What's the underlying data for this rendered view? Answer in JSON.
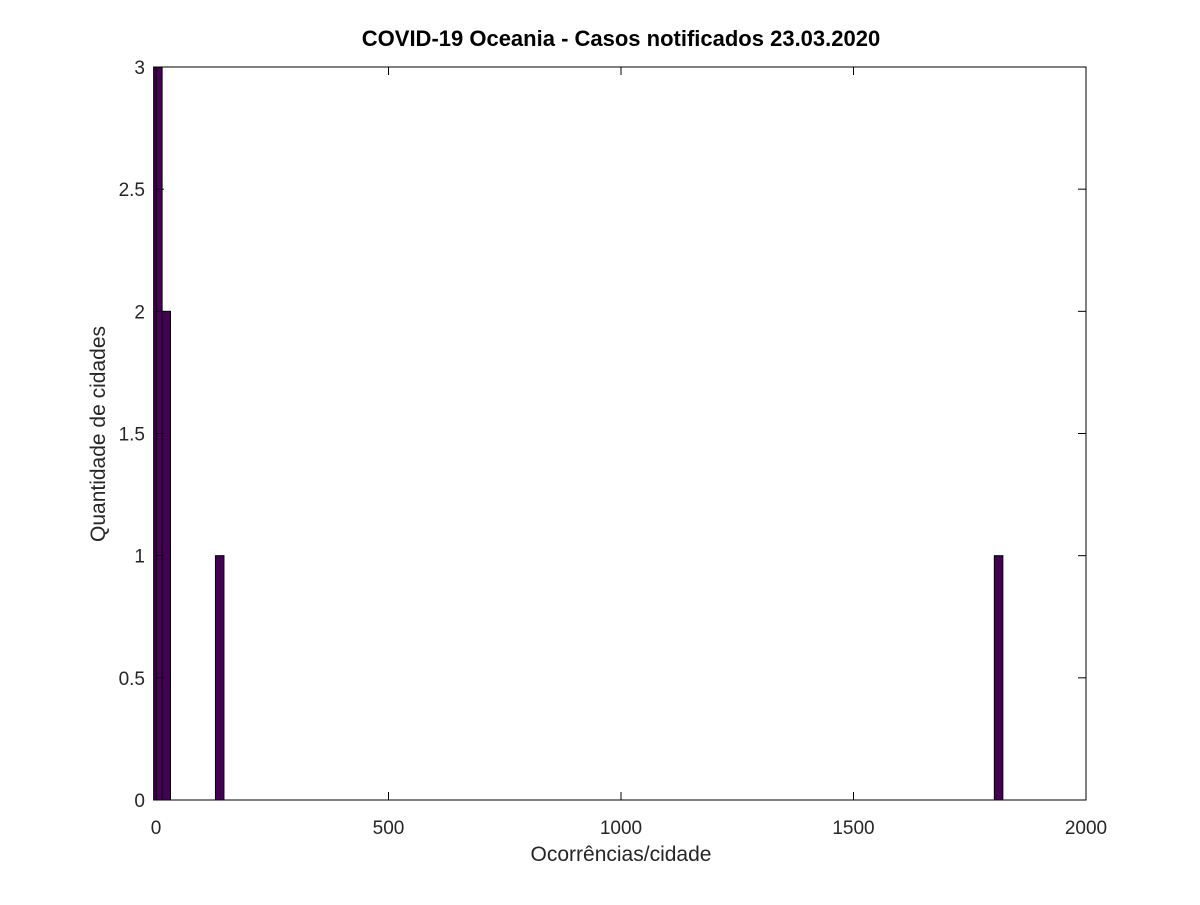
{
  "chart_data": {
    "type": "bar",
    "title": "COVID-19 Oceania - Casos notificados 23.03.2020",
    "xlabel": "Ocorrências/cidade",
    "ylabel": "Quantidade de cidades",
    "xlim": [
      0,
      2000
    ],
    "ylim": [
      0,
      3
    ],
    "x_ticks": [
      0,
      500,
      1000,
      1500,
      2000
    ],
    "x_tick_labels": [
      "0",
      "500",
      "1000",
      "1500",
      "2000"
    ],
    "y_ticks": [
      0,
      0.5,
      1,
      1.5,
      2,
      2.5,
      3
    ],
    "y_tick_labels": [
      "0",
      "0.5",
      "1",
      "1.5",
      "2",
      "2.5",
      "3"
    ],
    "bin_width": 18.3,
    "bars": [
      {
        "x": 4,
        "value": 3
      },
      {
        "x": 22,
        "value": 2
      },
      {
        "x": 137,
        "value": 1
      },
      {
        "x": 1812,
        "value": 1
      }
    ],
    "bar_color": "#440154",
    "grid": false,
    "box": true
  }
}
